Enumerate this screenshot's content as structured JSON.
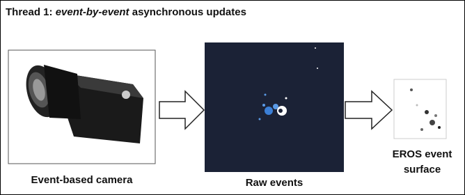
{
  "header": {
    "title_prefix": "Thread 1: ",
    "title_emphasis": "event-by-event",
    "title_suffix": " asynchronous updates"
  },
  "nodes": [
    {
      "label": "Event-based camera"
    },
    {
      "label": "Raw events"
    },
    {
      "label": "EROS event surface"
    }
  ]
}
